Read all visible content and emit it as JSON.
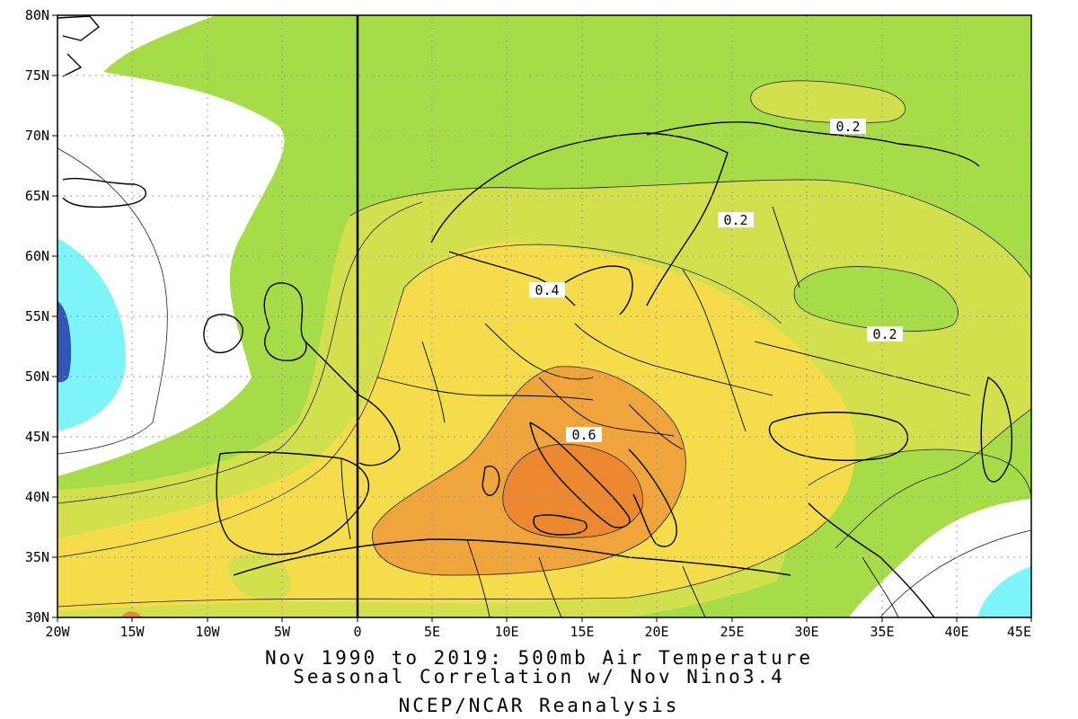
{
  "map": {
    "lat_labels": [
      "80N",
      "75N",
      "70N",
      "65N",
      "60N",
      "55N",
      "50N",
      "45N",
      "40N",
      "35N",
      "30N"
    ],
    "lon_labels": [
      "20W",
      "15W",
      "10W",
      "5W",
      "0",
      "5E",
      "10E",
      "15E",
      "20E",
      "25E",
      "30E",
      "35E",
      "40E",
      "45E"
    ],
    "contour_labels": [
      {
        "text": "0.2"
      },
      {
        "text": "0.2"
      },
      {
        "text": "0.2"
      },
      {
        "text": "0.4"
      },
      {
        "text": "0.6"
      }
    ],
    "colors": {
      "ocean_white": "#ffffff",
      "light_green": "#a5dc48",
      "yellow_green": "#d2e04e",
      "yellow": "#f4dc4a",
      "light_orange": "#f0a43c",
      "orange": "#ec8830",
      "cyan": "#7df4f7",
      "blue": "#3056b8",
      "coast": "#000000"
    }
  },
  "caption": {
    "line1": "Nov 1990 to 2019: 500mb Air Temperature",
    "line2": "Seasonal Correlation w/ Nov Nino3.4",
    "line3": "NCEP/NCAR Reanalysis"
  }
}
